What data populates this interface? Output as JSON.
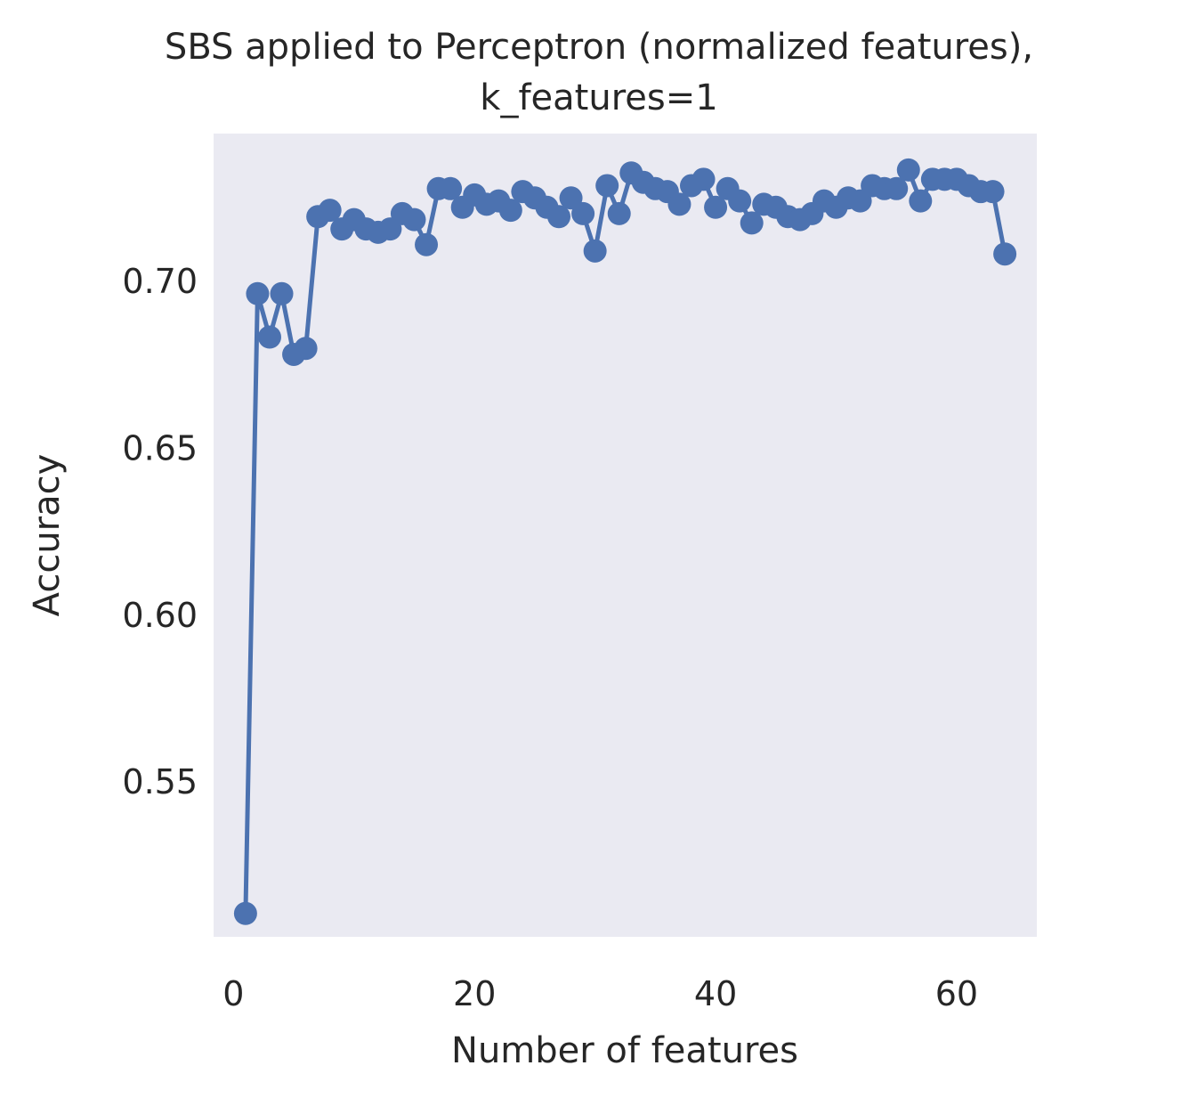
{
  "chart_data": {
    "type": "line",
    "title_lines": [
      "SBS applied to Perceptron (normalized features),",
      "k_features=1"
    ],
    "xlabel": "Number of features",
    "ylabel": "Accuracy",
    "x_ticks": [
      0,
      20,
      40,
      60
    ],
    "y_ticks": [
      0.55,
      0.6,
      0.65,
      0.7
    ],
    "y_tick_labels": [
      "0.55",
      "0.60",
      "0.65",
      "0.70"
    ],
    "xlim": [
      -1.65,
      66.65
    ],
    "ylim": [
      0.5033,
      0.7441
    ],
    "grid": false,
    "background": "#EAEAF2",
    "series": [
      {
        "color": "#4C72B0",
        "marker": "circle",
        "x": [
          1,
          2,
          3,
          4,
          5,
          6,
          7,
          8,
          9,
          10,
          11,
          12,
          13,
          14,
          15,
          16,
          17,
          18,
          19,
          20,
          21,
          22,
          23,
          24,
          25,
          26,
          27,
          28,
          29,
          30,
          31,
          32,
          33,
          34,
          35,
          36,
          37,
          38,
          39,
          40,
          41,
          42,
          43,
          44,
          45,
          46,
          47,
          48,
          49,
          50,
          51,
          52,
          53,
          54,
          55,
          56,
          57,
          58,
          59,
          60,
          61,
          62,
          63,
          64
        ],
        "y": [
          0.5103,
          0.6961,
          0.6831,
          0.6961,
          0.6779,
          0.6797,
          0.7192,
          0.7211,
          0.7155,
          0.7183,
          0.7155,
          0.7145,
          0.7155,
          0.7201,
          0.7183,
          0.7108,
          0.7276,
          0.7276,
          0.722,
          0.7257,
          0.7229,
          0.7239,
          0.7211,
          0.7267,
          0.7248,
          0.722,
          0.7192,
          0.7248,
          0.7201,
          0.7089,
          0.7285,
          0.7201,
          0.7323,
          0.7295,
          0.7276,
          0.7267,
          0.7229,
          0.7285,
          0.7304,
          0.722,
          0.7276,
          0.7239,
          0.7173,
          0.7229,
          0.722,
          0.7192,
          0.7183,
          0.7201,
          0.7239,
          0.722,
          0.7248,
          0.7239,
          0.7285,
          0.7276,
          0.7276,
          0.7332,
          0.7239,
          0.7304,
          0.7304,
          0.7304,
          0.7285,
          0.7267,
          0.7267,
          0.708
        ]
      }
    ]
  }
}
